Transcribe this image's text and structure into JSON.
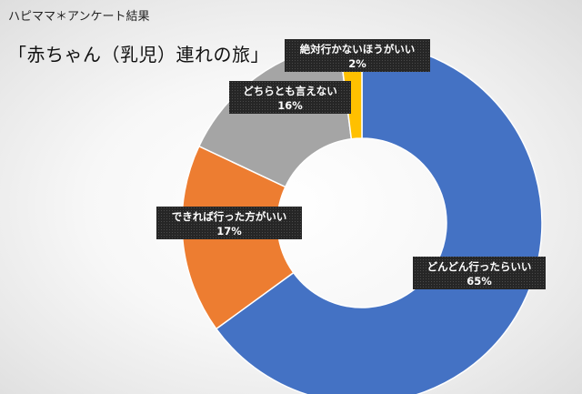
{
  "header": {
    "caption": "ハピママ＊アンケート結果"
  },
  "chart_data": {
    "type": "pie",
    "donut": true,
    "title": "「赤ちゃん（乳児）連れの旅」",
    "unit": "%",
    "categories": [
      "どんどん行ったらいい",
      "できれば行った方がいい",
      "どちらとも言えない",
      "絶対行かないほうがいい"
    ],
    "values": [
      65,
      17,
      16,
      2
    ],
    "colors": [
      "#4472c4",
      "#ed7d31",
      "#a5a5a5",
      "#ffc000"
    ],
    "data_labels": [
      "65%",
      "17%",
      "16%",
      "2%"
    ],
    "legend": "none"
  }
}
